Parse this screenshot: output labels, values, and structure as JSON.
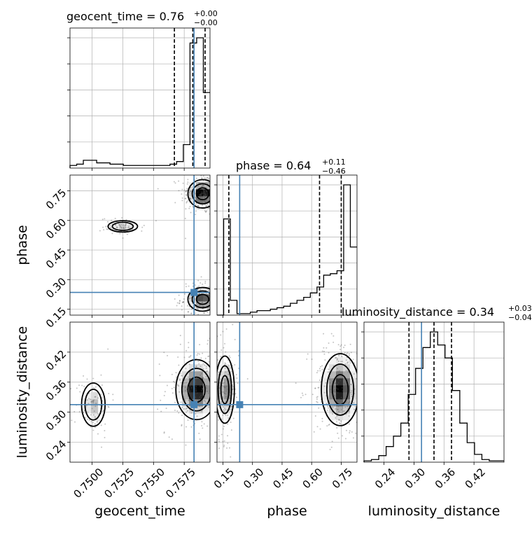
{
  "chart_data": {
    "type": "corner",
    "colors": {
      "truth": "#4682b4",
      "hist": "#000000",
      "grid": "#b0b0b0",
      "samples": "#555555"
    },
    "parameters": [
      {
        "key": "geocent_time",
        "label": "geocent_time",
        "range": [
          0.7482,
          0.7596
        ],
        "truth": 0.7583,
        "median": "0.76",
        "plus": "+0.00",
        "minus": "−0.00",
        "quantiles": [
          0.7567,
          0.7582,
          0.7592
        ],
        "ticks": [
          0.75,
          0.7525,
          0.755,
          0.7575
        ],
        "tick_labels": [
          "0.7500",
          "0.7525",
          "0.7550",
          "0.7575"
        ],
        "hist": [
          2,
          3,
          6,
          6,
          4,
          4,
          3,
          3,
          2,
          2,
          2,
          2,
          2,
          2,
          2,
          3,
          5,
          18,
          96,
          100,
          58
        ]
      },
      {
        "key": "phase",
        "label": "phase",
        "range": [
          0.12,
          0.83
        ],
        "truth": 0.235,
        "median": "0.64",
        "plus": "+0.11",
        "minus": "−0.46",
        "quantiles": [
          0.18,
          0.64,
          0.75
        ],
        "ticks": [
          0.15,
          0.3,
          0.45,
          0.6,
          0.75
        ],
        "tick_labels": [
          "0.15",
          "0.30",
          "0.45",
          "0.60",
          "0.75"
        ],
        "hist": [
          0,
          65,
          10,
          1,
          1,
          2,
          3,
          3,
          4,
          5,
          6,
          8,
          10,
          12,
          15,
          19,
          27,
          28,
          30,
          88,
          46
        ]
      },
      {
        "key": "luminosity_distance",
        "label": "luminosity_distance",
        "range": [
          0.2,
          0.48
        ],
        "truth": 0.315,
        "median": "0.34",
        "plus": "+0.03",
        "minus": "−0.04",
        "quantiles": [
          0.29,
          0.34,
          0.375
        ],
        "ticks": [
          0.24,
          0.3,
          0.36,
          0.42
        ],
        "tick_labels": [
          "0.24",
          "0.30",
          "0.36",
          "0.42"
        ],
        "hist": [
          1,
          2,
          5,
          12,
          20,
          30,
          52,
          72,
          88,
          100,
          90,
          80,
          55,
          30,
          15,
          6,
          2,
          1,
          1
        ]
      }
    ],
    "pairs": [
      {
        "x": "geocent_time",
        "y": "phase",
        "blobs": [
          {
            "cx": 0.759,
            "cy": 0.735,
            "sx": 0.0005,
            "sy": 0.03,
            "w": 1.0
          },
          {
            "cx": 0.759,
            "cy": 0.2,
            "sx": 0.0005,
            "sy": 0.025,
            "w": 0.8
          },
          {
            "cx": 0.7525,
            "cy": 0.57,
            "sx": 0.0005,
            "sy": 0.012,
            "w": 0.3
          }
        ]
      },
      {
        "x": "geocent_time",
        "y": "luminosity_distance",
        "blobs": [
          {
            "cx": 0.7585,
            "cy": 0.345,
            "sx": 0.0007,
            "sy": 0.025,
            "w": 1.0
          },
          {
            "cx": 0.7501,
            "cy": 0.315,
            "sx": 0.0004,
            "sy": 0.018,
            "w": 0.35
          }
        ]
      },
      {
        "x": "phase",
        "y": "luminosity_distance",
        "blobs": [
          {
            "cx": 0.745,
            "cy": 0.345,
            "sx": 0.04,
            "sy": 0.03,
            "w": 1.0
          },
          {
            "cx": 0.16,
            "cy": 0.345,
            "sx": 0.02,
            "sy": 0.028,
            "w": 0.7
          }
        ]
      }
    ]
  }
}
